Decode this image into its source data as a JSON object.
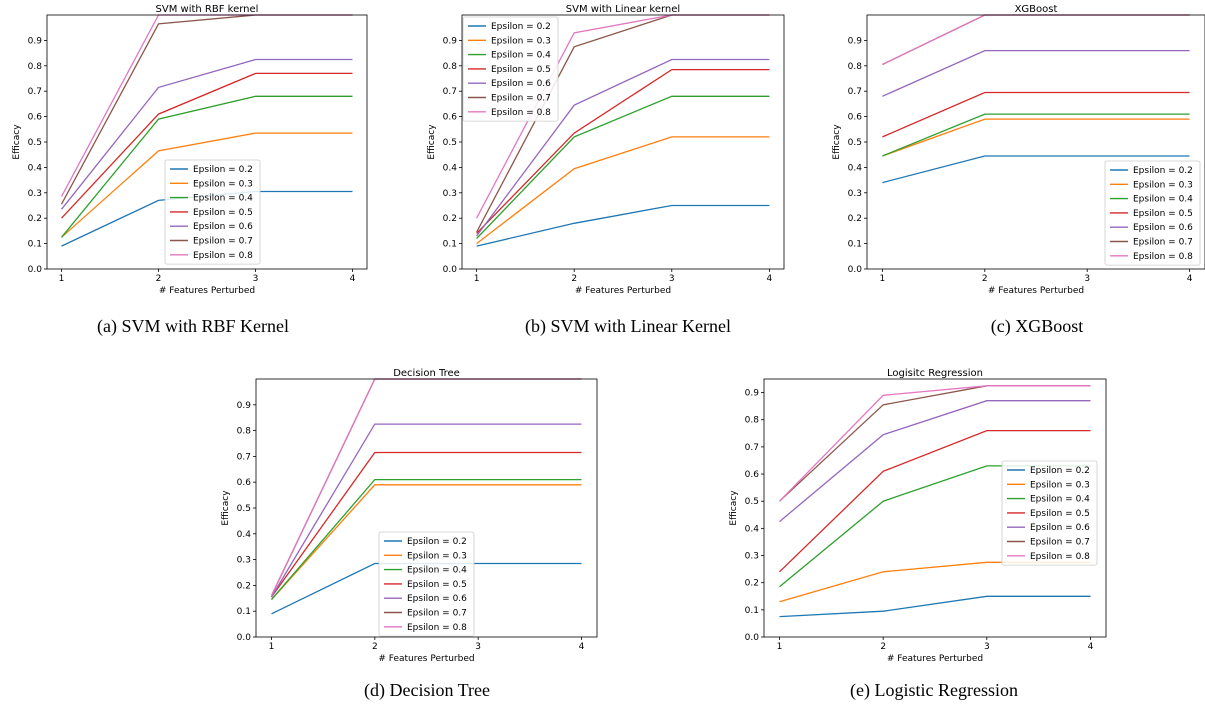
{
  "series_colors": [
    "#1f77b4",
    "#ff7f0e",
    "#2ca02c",
    "#d62728",
    "#9467bd",
    "#8c564b",
    "#e377c2"
  ],
  "chart_data": [
    {
      "type": "line",
      "title": "SVM with RBF kernel",
      "caption": "(a)  SVM with RBF Kernel",
      "xlabel": "# Features Perturbed",
      "ylabel": "Efficacy",
      "x": [
        1,
        2,
        3,
        4
      ],
      "xlim": [
        0.85,
        4.15
      ],
      "ylim": [
        0,
        1.0
      ],
      "yticks": [
        "0.0",
        "0.1",
        "0.2",
        "0.3",
        "0.4",
        "0.5",
        "0.6",
        "0.7",
        "0.8",
        "0.9"
      ],
      "legend": "lower-center",
      "series": [
        {
          "name": "Epsilon = 0.2",
          "values": [
            0.09,
            0.27,
            0.305,
            0.305
          ]
        },
        {
          "name": "Epsilon = 0.3",
          "values": [
            0.125,
            0.465,
            0.535,
            0.535
          ]
        },
        {
          "name": "Epsilon = 0.4",
          "values": [
            0.125,
            0.59,
            0.68,
            0.68
          ]
        },
        {
          "name": "Epsilon = 0.5",
          "values": [
            0.2,
            0.61,
            0.77,
            0.77
          ]
        },
        {
          "name": "Epsilon = 0.6",
          "values": [
            0.235,
            0.715,
            0.825,
            0.825
          ]
        },
        {
          "name": "Epsilon = 0.7",
          "values": [
            0.255,
            0.965,
            1.0,
            1.0
          ]
        },
        {
          "name": "Epsilon = 0.8",
          "values": [
            0.285,
            1.0,
            1.0,
            1.0
          ]
        }
      ]
    },
    {
      "type": "line",
      "title": "SVM with Linear kernel",
      "caption": "(b)  SVM with Linear Kernel",
      "xlabel": "# Features Perturbed",
      "ylabel": "Efficacy",
      "x": [
        1,
        2,
        3,
        4
      ],
      "xlim": [
        0.85,
        4.15
      ],
      "ylim": [
        0,
        1.0
      ],
      "yticks": [
        "0.0",
        "0.1",
        "0.2",
        "0.3",
        "0.4",
        "0.5",
        "0.6",
        "0.7",
        "0.8",
        "0.9"
      ],
      "legend": "upper-left",
      "series": [
        {
          "name": "Epsilon = 0.2",
          "values": [
            0.09,
            0.18,
            0.25,
            0.25
          ]
        },
        {
          "name": "Epsilon = 0.3",
          "values": [
            0.1,
            0.395,
            0.52,
            0.52
          ]
        },
        {
          "name": "Epsilon = 0.4",
          "values": [
            0.12,
            0.52,
            0.68,
            0.68
          ]
        },
        {
          "name": "Epsilon = 0.5",
          "values": [
            0.14,
            0.535,
            0.785,
            0.785
          ]
        },
        {
          "name": "Epsilon = 0.6",
          "values": [
            0.13,
            0.645,
            0.825,
            0.825
          ]
        },
        {
          "name": "Epsilon = 0.7",
          "values": [
            0.145,
            0.875,
            1.0,
            1.0
          ]
        },
        {
          "name": "Epsilon = 0.8",
          "values": [
            0.2,
            0.93,
            1.0,
            1.0
          ]
        }
      ]
    },
    {
      "type": "line",
      "title": "XGBoost",
      "caption": "(c)  XGBoost",
      "xlabel": "# Features Perturbed",
      "ylabel": "Efficacy",
      "x": [
        1,
        2,
        3,
        4
      ],
      "xlim": [
        0.85,
        4.15
      ],
      "ylim": [
        0,
        1.0
      ],
      "yticks": [
        "0.0",
        "0.1",
        "0.2",
        "0.3",
        "0.4",
        "0.5",
        "0.6",
        "0.7",
        "0.8",
        "0.9"
      ],
      "legend": "lower-right",
      "series": [
        {
          "name": "Epsilon = 0.2",
          "values": [
            0.34,
            0.445,
            0.445,
            0.445
          ]
        },
        {
          "name": "Epsilon = 0.3",
          "values": [
            0.445,
            0.59,
            0.59,
            0.59
          ]
        },
        {
          "name": "Epsilon = 0.4",
          "values": [
            0.445,
            0.61,
            0.61,
            0.61
          ]
        },
        {
          "name": "Epsilon = 0.5",
          "values": [
            0.52,
            0.695,
            0.695,
            0.695
          ]
        },
        {
          "name": "Epsilon = 0.6",
          "values": [
            0.68,
            0.86,
            0.86,
            0.86
          ]
        },
        {
          "name": "Epsilon = 0.7",
          "values": [
            0.805,
            1.0,
            1.0,
            1.0
          ]
        },
        {
          "name": "Epsilon = 0.8",
          "values": [
            0.805,
            1.0,
            1.0,
            1.0
          ]
        }
      ]
    },
    {
      "type": "line",
      "title": "Decision Tree",
      "caption": "(d)  Decision Tree",
      "xlabel": "# Features Perturbed",
      "ylabel": "Efficacy",
      "x": [
        1,
        2,
        3,
        4
      ],
      "xlim": [
        0.85,
        4.15
      ],
      "ylim": [
        0,
        1.0
      ],
      "yticks": [
        "0.0",
        "0.1",
        "0.2",
        "0.3",
        "0.4",
        "0.5",
        "0.6",
        "0.7",
        "0.8",
        "0.9"
      ],
      "legend": "lower-center",
      "series": [
        {
          "name": "Epsilon = 0.2",
          "values": [
            0.09,
            0.285,
            0.285,
            0.285
          ]
        },
        {
          "name": "Epsilon = 0.3",
          "values": [
            0.145,
            0.59,
            0.59,
            0.59
          ]
        },
        {
          "name": "Epsilon = 0.4",
          "values": [
            0.145,
            0.61,
            0.61,
            0.61
          ]
        },
        {
          "name": "Epsilon = 0.5",
          "values": [
            0.155,
            0.715,
            0.715,
            0.715
          ]
        },
        {
          "name": "Epsilon = 0.6",
          "values": [
            0.155,
            0.825,
            0.825,
            0.825
          ]
        },
        {
          "name": "Epsilon = 0.7",
          "values": [
            0.16,
            1.0,
            1.0,
            1.0
          ]
        },
        {
          "name": "Epsilon = 0.8",
          "values": [
            0.16,
            1.0,
            1.0,
            1.0
          ]
        }
      ]
    },
    {
      "type": "line",
      "title": "Logisitc Regression",
      "caption": "(e)  Logistic Regression",
      "xlabel": "# Features Perturbed",
      "ylabel": "Efficacy",
      "x": [
        1,
        2,
        3,
        4
      ],
      "xlim": [
        0.85,
        4.15
      ],
      "ylim": [
        0,
        0.95
      ],
      "yticks": [
        "0.0",
        "0.1",
        "0.2",
        "0.3",
        "0.4",
        "0.5",
        "0.6",
        "0.7",
        "0.8",
        "0.9"
      ],
      "legend": "center-right",
      "series": [
        {
          "name": "Epsilon = 0.2",
          "values": [
            0.075,
            0.095,
            0.15,
            0.15
          ]
        },
        {
          "name": "Epsilon = 0.3",
          "values": [
            0.13,
            0.24,
            0.275,
            0.275
          ]
        },
        {
          "name": "Epsilon = 0.4",
          "values": [
            0.185,
            0.5,
            0.63,
            0.63
          ]
        },
        {
          "name": "Epsilon = 0.5",
          "values": [
            0.24,
            0.61,
            0.76,
            0.76
          ]
        },
        {
          "name": "Epsilon = 0.6",
          "values": [
            0.425,
            0.745,
            0.87,
            0.87
          ]
        },
        {
          "name": "Epsilon = 0.7",
          "values": [
            0.5,
            0.855,
            0.925,
            0.925
          ]
        },
        {
          "name": "Epsilon = 0.8",
          "values": [
            0.5,
            0.89,
            0.925,
            0.925
          ]
        }
      ]
    }
  ]
}
